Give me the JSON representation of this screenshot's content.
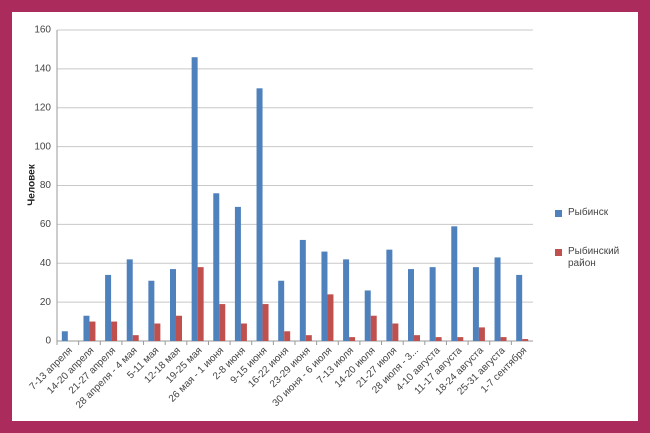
{
  "chart_data": {
    "type": "bar",
    "y_label": "Человек",
    "categories": [
      "7-13 апреля",
      "14-20 апреля",
      "21-27 апреля",
      "28 апреля - 4 мая",
      "5-11 мая",
      "12-18 мая",
      "19-25 мая",
      "26 мая - 1 июня",
      "2-8 июня",
      "9-15 июня",
      "16-22 июня",
      "23-29 июня",
      "30 июня - 6 июля",
      "7-13 июля",
      "14-20 июля",
      "21-27 июля",
      "28 июля - 3...",
      "4-10 августа",
      "11-17 августа",
      "18-24 августа",
      "25-31 августа",
      "1-7 сентября"
    ],
    "series": [
      {
        "name": "Рыбинск",
        "color": "#4f81bd",
        "values": [
          5,
          13,
          34,
          42,
          31,
          37,
          146,
          76,
          69,
          130,
          31,
          52,
          46,
          42,
          26,
          47,
          37,
          38,
          59,
          38,
          43,
          34
        ]
      },
      {
        "name": "Рыбинский район",
        "color": "#c0504d",
        "values": [
          0,
          10,
          10,
          3,
          9,
          13,
          38,
          19,
          9,
          19,
          5,
          3,
          24,
          2,
          13,
          9,
          3,
          2,
          2,
          7,
          2,
          1
        ]
      }
    ],
    "ylim": [
      0,
      160
    ],
    "yticks": [
      0,
      20,
      40,
      60,
      80,
      100,
      120,
      140,
      160
    ],
    "grid": true,
    "legend": "right"
  }
}
